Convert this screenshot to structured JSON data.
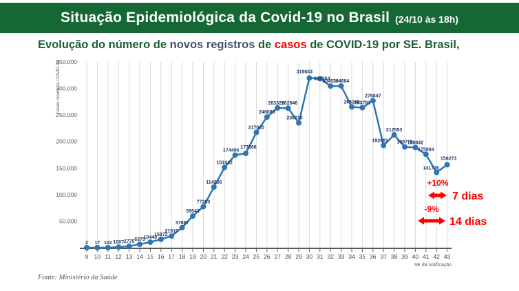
{
  "header": {
    "title": "Situação Epidemiológica da Covid-19 no Brasil",
    "time": "(24/10 às 18h)"
  },
  "subtitle": {
    "segments": [
      {
        "text": "Evolução do número de ",
        "color": "#1B5E36"
      },
      {
        "text": "novos registros ",
        "color": "#44546A"
      },
      {
        "text": "de ",
        "color": "#1B5E36"
      },
      {
        "text": "casos ",
        "color": "#FF0000"
      },
      {
        "text": "de COVID-19 por SE. Brasil,",
        "color": "#1B5E36"
      }
    ]
  },
  "chart_data": {
    "type": "line",
    "title": "Evolução do número de novos registros de casos de COVID-19 por SE. Brasil",
    "x": [
      9,
      10,
      11,
      12,
      13,
      14,
      15,
      16,
      17,
      18,
      19,
      20,
      21,
      22,
      23,
      24,
      25,
      26,
      27,
      28,
      29,
      30,
      31,
      32,
      33,
      34,
      35,
      36,
      37,
      38,
      39,
      40,
      41,
      42,
      43
    ],
    "values": [
      2,
      17,
      102,
      1007,
      2775,
      6375,
      10449,
      15872,
      21910,
      37887,
      59543,
      77203,
      114256,
      151042,
      174406,
      177668,
      217065,
      246088,
      263325,
      262846,
      235010,
      319653,
      318364,
      304539,
      304684,
      265269,
      263791,
      276847,
      192681,
      212553,
      189773,
      188842,
      175904,
      141726,
      156273
    ],
    "xlabel": "SE da notificação",
    "ylabel": "Casos novos da COVID-19",
    "ylim": [
      0,
      350000
    ],
    "ytick_labels": [
      "50.000",
      "100.000",
      "150.000",
      "200.000",
      "250.000",
      "300.000",
      "350.000"
    ],
    "grid": "vertical",
    "line_color": "#2E75B6",
    "point_label_color": "#1F3864"
  },
  "annotations": {
    "color": "#FF0000",
    "week1": {
      "pct": "+10%",
      "label": "7 dias"
    },
    "week2": {
      "pct": "-9%",
      "label": "14 dias"
    }
  },
  "footer": {
    "source": "Fonte: Ministério da Saúde"
  },
  "colors": {
    "header_bg": "#156733",
    "header_text": "#FFFFFF",
    "subtitle_green": "#1B5E36",
    "subtitle_slate": "#44546A",
    "accent_red": "#FF0000",
    "line_blue": "#2E75B6",
    "data_label_navy": "#1F3864",
    "axis_gray": "#595959",
    "grid_gray": "#D9D9D9"
  }
}
